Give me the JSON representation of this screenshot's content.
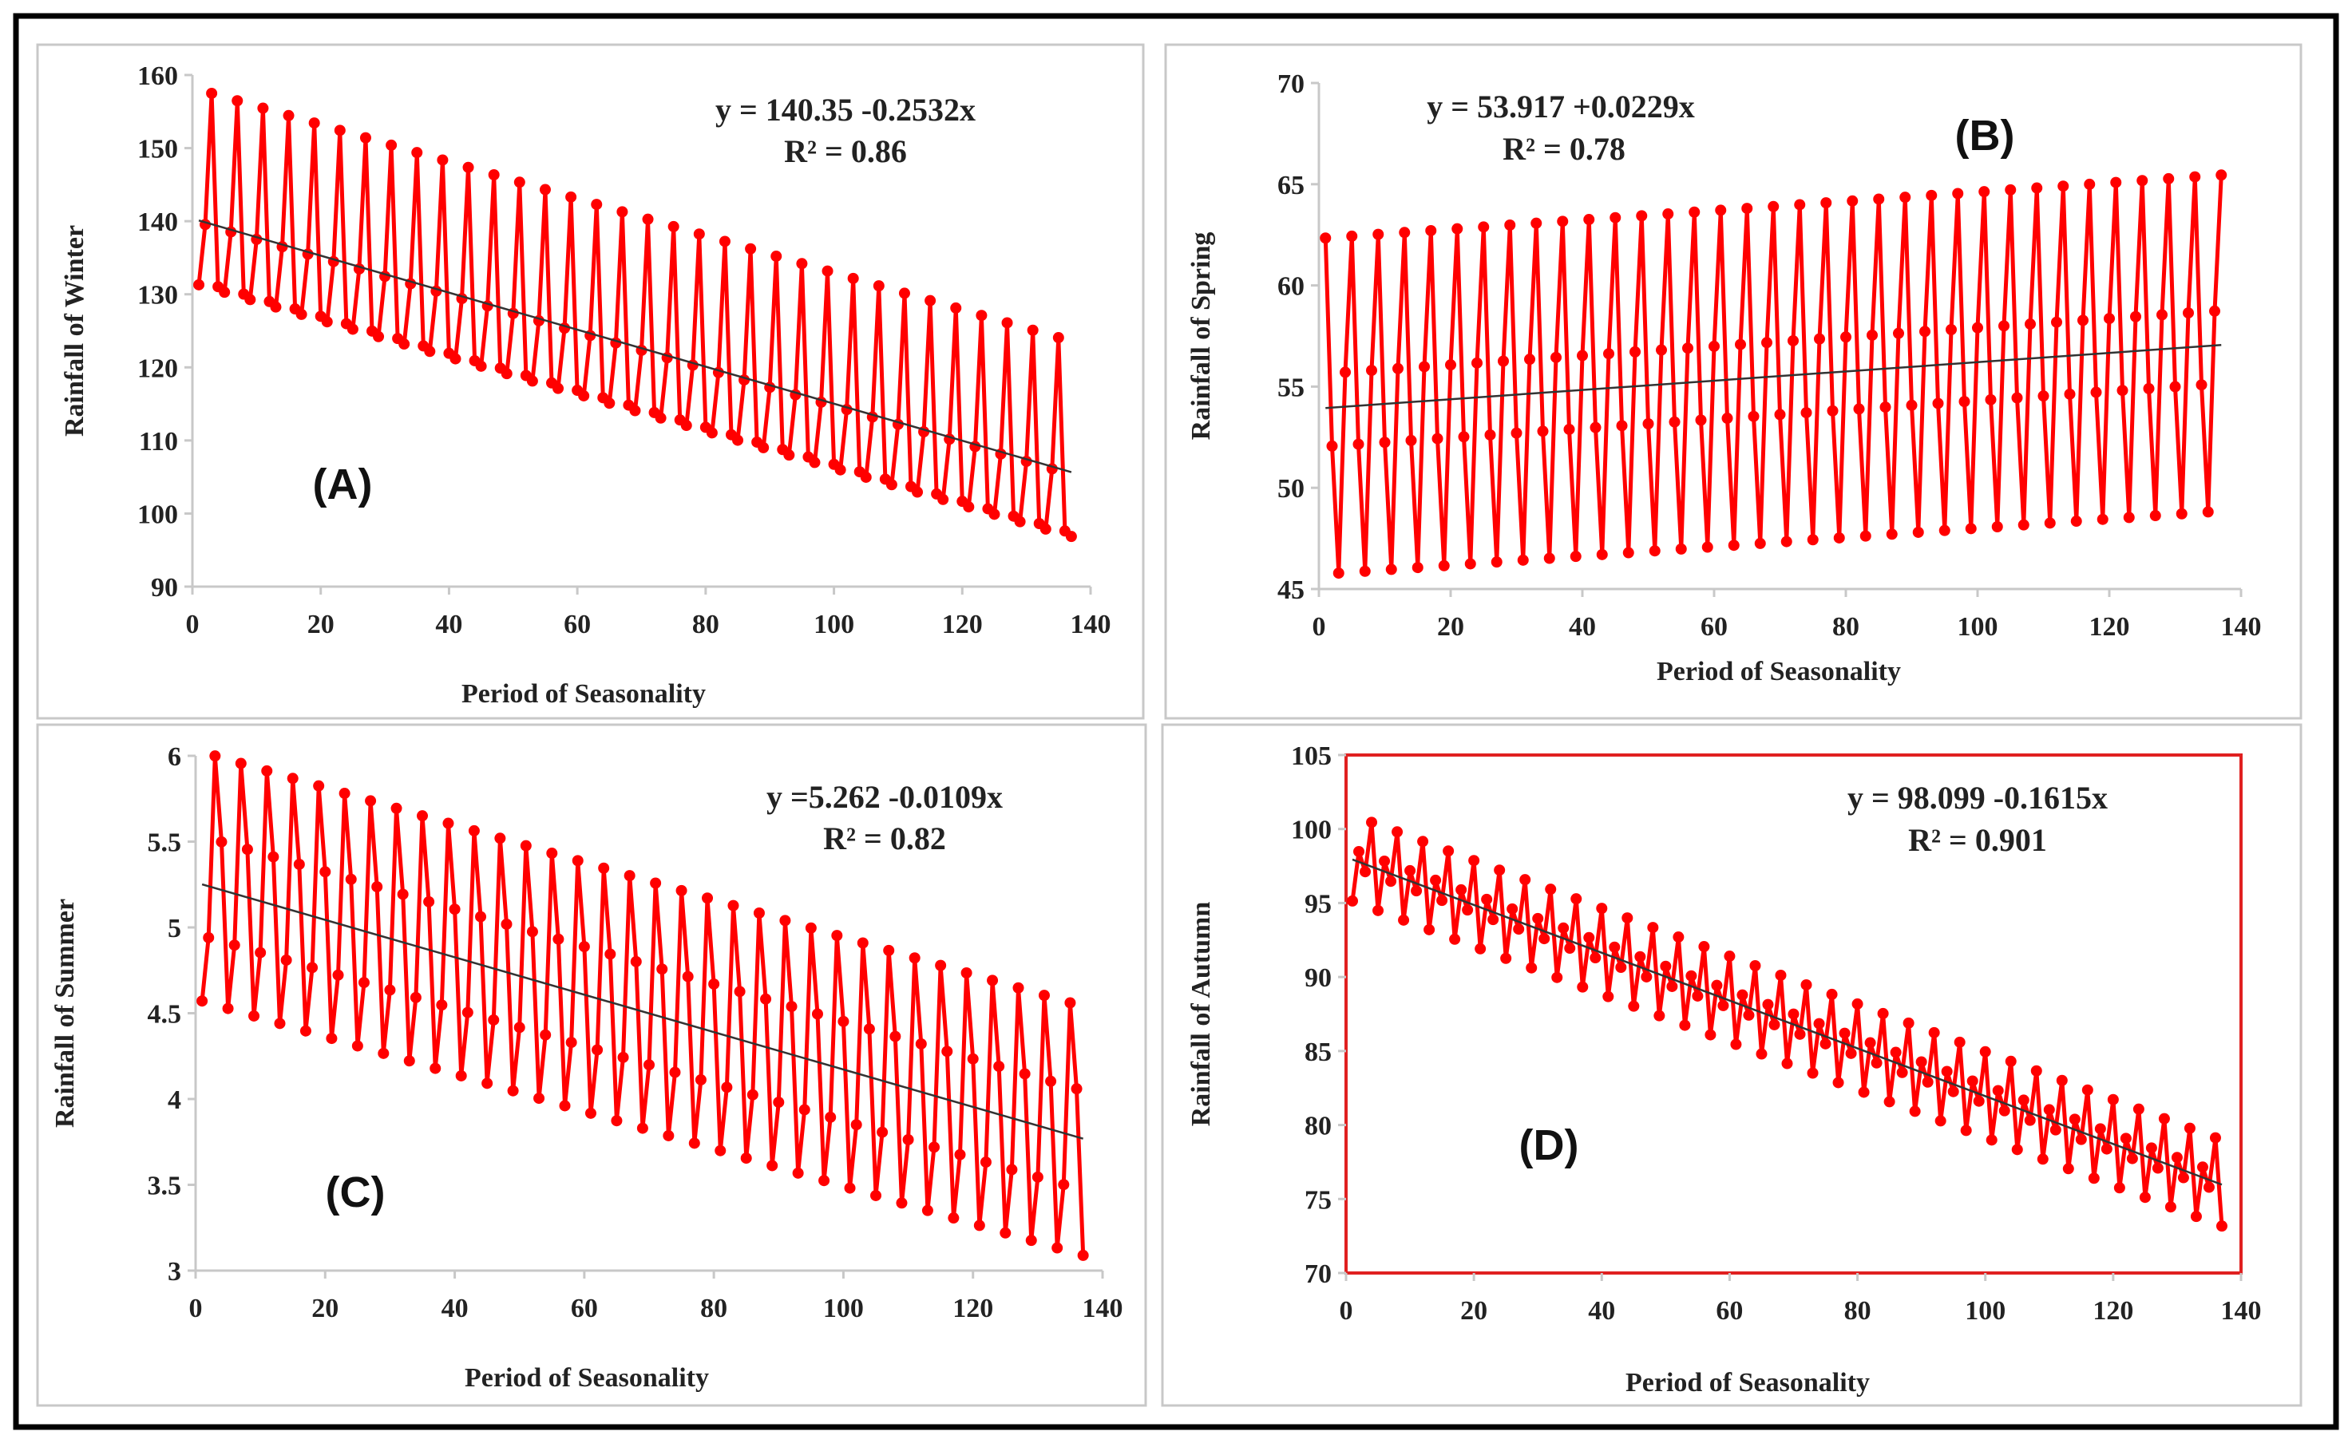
{
  "chart_data": [
    {
      "type": "line",
      "panel_label": "(A)",
      "xlabel": "Period of Seasonality",
      "ylabel": "Rainfall of Winter",
      "xlim": [
        0,
        140
      ],
      "xticks": [
        "0",
        "20",
        "40",
        "60",
        "80",
        "100",
        "120",
        "140"
      ],
      "ylim": [
        90,
        160
      ],
      "yticks": [
        "90",
        "100",
        "110",
        "120",
        "130",
        "140",
        "150",
        "160"
      ],
      "n_points": 137,
      "series_model": {
        "intercept": 140.35,
        "slope": -0.2532,
        "period": 4,
        "seasonal_offsets_phase_1_2_3_4": [
          -8.8,
          -0.3,
          17.9,
          -8.3
        ]
      },
      "trendline": {
        "intercept": 140.35,
        "slope": -0.2532
      },
      "equation": "y = 140.35 -0.2532x",
      "r2": "R² = 0.86",
      "plot_border": false
    },
    {
      "type": "line",
      "panel_label": "(B)",
      "xlabel": "Period of Seasonality",
      "ylabel": "Rainfall of Spring",
      "xlim": [
        0,
        140
      ],
      "xticks": [
        "0",
        "20",
        "40",
        "60",
        "80",
        "100",
        "120",
        "140"
      ],
      "ylim": [
        45,
        70
      ],
      "yticks": [
        "45",
        "50",
        "55",
        "60",
        "65",
        "70"
      ],
      "n_points": 137,
      "series_model": {
        "intercept": 53.917,
        "slope": 0.0229,
        "period": 4,
        "seasonal_offsets_phase_1_2_3_4": [
          8.4,
          -1.9,
          -8.2,
          1.7
        ]
      },
      "trendline": {
        "intercept": 53.917,
        "slope": 0.0229
      },
      "equation": "y = 53.917 +0.0229x",
      "r2": "R² = 0.78",
      "plot_border": false
    },
    {
      "type": "line",
      "panel_label": "(C)",
      "xlabel": "Period of Seasonality",
      "ylabel": "Rainfall of Summer",
      "xlim": [
        0,
        140
      ],
      "xticks": [
        "0",
        "20",
        "40",
        "60",
        "80",
        "100",
        "120",
        "140"
      ],
      "ylim": [
        3,
        6
      ],
      "yticks": [
        "3",
        "3.5",
        "4",
        "4.5",
        "5",
        "5.5",
        "6"
      ],
      "n_points": 137,
      "series_model": {
        "intercept": 5.262,
        "slope": -0.0109,
        "period": 4,
        "seasonal_offsets_phase_1_2_3_4": [
          -0.68,
          -0.3,
          0.77,
          0.28
        ]
      },
      "trendline": {
        "intercept": 5.262,
        "slope": -0.0109
      },
      "equation": "y =5.262 -0.0109x",
      "r2": "R² = 0.82",
      "plot_border": false
    },
    {
      "type": "line",
      "panel_label": "(D)",
      "xlabel": "Period of Seasonality",
      "ylabel": "Rainfall of Autumn",
      "xlim": [
        0,
        140
      ],
      "xticks": [
        "0",
        "20",
        "40",
        "60",
        "80",
        "100",
        "120",
        "140"
      ],
      "ylim": [
        70,
        105
      ],
      "yticks": [
        "70",
        "75",
        "80",
        "85",
        "90",
        "95",
        "100",
        "105"
      ],
      "n_points": 137,
      "series_model": {
        "intercept": 98.099,
        "slope": -0.1615,
        "period": 4,
        "seasonal_offsets_phase_1_2_3_4": [
          -2.8,
          0.7,
          -0.5,
          3.0
        ]
      },
      "trendline": {
        "intercept": 98.099,
        "slope": -0.1615
      },
      "equation": "y = 98.099 -0.1615x",
      "r2": "R² = 0.901",
      "plot_border": true
    }
  ],
  "colors": {
    "series": "#ff0000",
    "trend": "#333333",
    "axis": "#c8c8c8",
    "panel_border": "#c8c8c8",
    "frame": "#000000",
    "plot_border": "#e02020"
  }
}
